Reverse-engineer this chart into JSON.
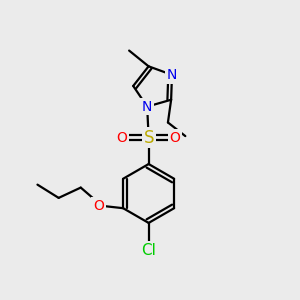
{
  "background_color": "#ebebeb",
  "atom_colors": {
    "C": "#000000",
    "N": "#0000ee",
    "O": "#ff0000",
    "S": "#bbaa00",
    "Cl": "#00cc00"
  },
  "bond_color": "#000000",
  "bond_width": 1.6,
  "font_size_atom": 10,
  "font_size_large": 12,
  "font_size_small": 8.5
}
